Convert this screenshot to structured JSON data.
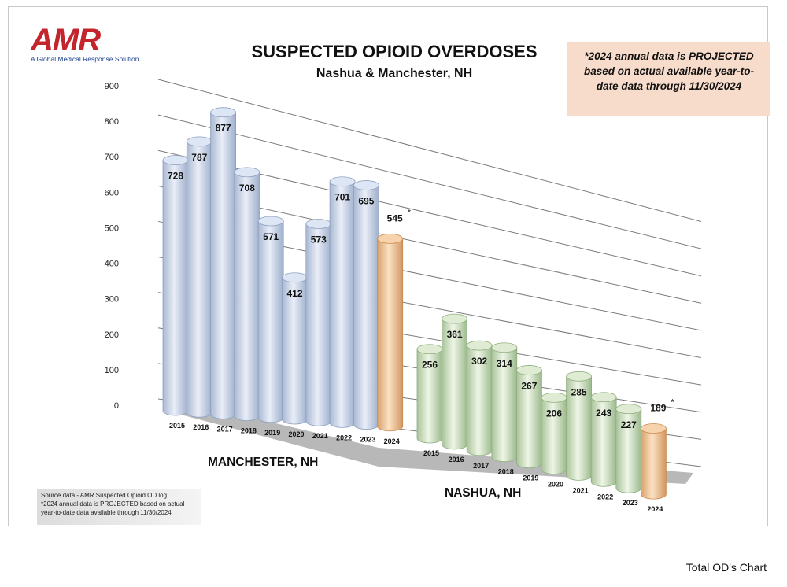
{
  "logo": {
    "word": "AMR",
    "tagline": "A Global Medical Response Solution"
  },
  "title": "SUSPECTED OPIOID OVERDOSES",
  "subtitle": "Nashua & Manchester, NH",
  "note": {
    "prefix": "*2024 annual data is ",
    "emph": "PROJECTED",
    "suffix": " based on actual available year-to-date data through 11/30/2024"
  },
  "source": {
    "line1": "Source data - AMR Suspected Opioid OD log",
    "line2": "*2024 annual data is PROJECTED based on actual year-to-date data available through 11/30/2024"
  },
  "footer": "Total OD's Chart",
  "colors": {
    "historic_manchester": "#c9d6ec",
    "historic_nashua": "#cfe2c2",
    "projected": "#f3c99a"
  },
  "chart_data": {
    "type": "bar",
    "ylim": [
      0,
      900
    ],
    "y_ticks": [
      "0",
      "100",
      "200",
      "300",
      "400",
      "500",
      "600",
      "700",
      "800",
      "900"
    ],
    "grid": true,
    "groups": [
      {
        "name": "MANCHESTER, NH",
        "categories": [
          "2015",
          "2016",
          "2017",
          "2018",
          "2019",
          "2020",
          "2021",
          "2022",
          "2023",
          "2024"
        ],
        "values": [
          728,
          787,
          877,
          708,
          571,
          412,
          573,
          701,
          695,
          545
        ],
        "projected": [
          false,
          false,
          false,
          false,
          false,
          false,
          false,
          false,
          false,
          true
        ]
      },
      {
        "name": "NASHUA, NH",
        "categories": [
          "2015",
          "2016",
          "2017",
          "2018",
          "2019",
          "2020",
          "2021",
          "2022",
          "2023",
          "2024"
        ],
        "values": [
          256,
          361,
          302,
          314,
          267,
          206,
          285,
          243,
          227,
          189
        ],
        "projected": [
          false,
          false,
          false,
          false,
          false,
          false,
          false,
          false,
          false,
          true
        ]
      }
    ],
    "projected_marker": "*"
  }
}
